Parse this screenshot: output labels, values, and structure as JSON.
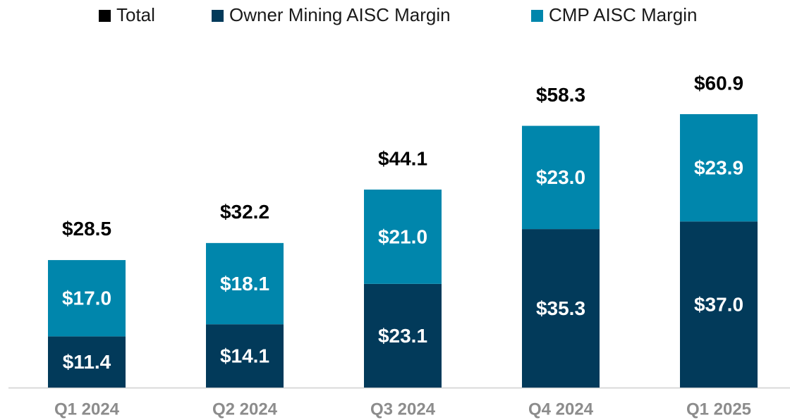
{
  "chart_data": {
    "type": "stacked_bar",
    "categories": [
      "Q1 2024",
      "Q2 2024",
      "Q3 2024",
      "Q4 2024",
      "Q1 2025"
    ],
    "series": [
      {
        "name": "Total",
        "color": "#000000",
        "stacked": false,
        "values": [
          28.5,
          32.2,
          44.1,
          58.3,
          60.9
        ],
        "value_labels": [
          "$28.5",
          "$32.2",
          "$44.1",
          "$58.3",
          "$60.9"
        ]
      },
      {
        "name": "Owner Mining AISC Margin",
        "color": "#023a5a",
        "stacked": true,
        "values": [
          11.4,
          14.1,
          23.1,
          35.3,
          37.0
        ],
        "value_labels": [
          "$11.4",
          "$14.1",
          "$23.1",
          "$35.3",
          "$37.0"
        ]
      },
      {
        "name": "CMP AISC Margin",
        "color": "#0086ac",
        "stacked": true,
        "values": [
          17.0,
          18.1,
          21.0,
          23.0,
          23.9
        ],
        "value_labels": [
          "$17.0",
          "$18.1",
          "$21.0",
          "$23.0",
          "$23.9"
        ]
      }
    ],
    "legend": "top"
  }
}
